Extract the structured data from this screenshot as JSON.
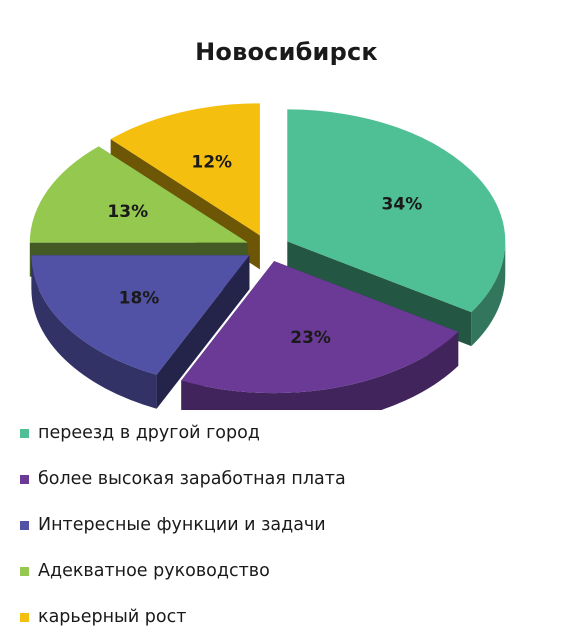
{
  "chart_data": {
    "type": "pie",
    "title": "Новосибирск",
    "categories": [
      "переезд в другой город",
      "более высокая заработная плата",
      "Интересные функции и задачи",
      "Адекватное руководство",
      "карьерный рост"
    ],
    "values": [
      34,
      23,
      18,
      13,
      12
    ],
    "value_labels": [
      "34%",
      "23%",
      "18%",
      "13%",
      "12%"
    ],
    "colors": [
      "#4fbf96",
      "#6a3a96",
      "#5151a6",
      "#94c84f",
      "#f5bf10"
    ],
    "legend_position": "bottom"
  }
}
